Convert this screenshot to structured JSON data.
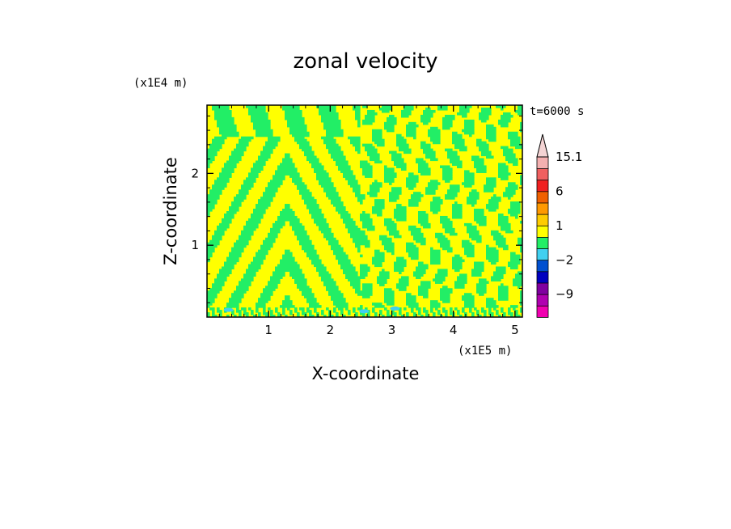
{
  "chart_data": {
    "type": "heatmap",
    "title": "zonal velocity",
    "xlabel": "X-coordinate",
    "ylabel": "Z-coordinate",
    "x_scale_label": "(x1E5 m)",
    "y_scale_label": "(x1E4 m)",
    "time_label": "t=6000 s",
    "x_ticks": [
      1,
      2,
      3,
      4,
      5
    ],
    "y_ticks": [
      1,
      2
    ],
    "xlim": [
      0,
      5.12
    ],
    "ylim": [
      0,
      2.95
    ],
    "field_colors": {
      "positive_small": "#ffff00",
      "negative_small": "#22ee66",
      "cyan": "#40d0f0",
      "orange": "#f0a000"
    },
    "colorbar": {
      "levels": [
        -15,
        -12,
        -9,
        -6,
        -4,
        -2,
        -1,
        0,
        1,
        2,
        4,
        6,
        9,
        12,
        15.1
      ],
      "colors": [
        "#f000b0",
        "#b000b0",
        "#8000a0",
        "#0000c0",
        "#0050d0",
        "#40d0f0",
        "#22ee66",
        "#ffff00",
        "#ffcc00",
        "#ff9900",
        "#f06000",
        "#f02020",
        "#f06060",
        "#f4b0b0"
      ],
      "over_color": "#f4d4d4",
      "labels": [
        "15.1",
        "6",
        "1",
        "−2",
        "−9"
      ]
    }
  }
}
